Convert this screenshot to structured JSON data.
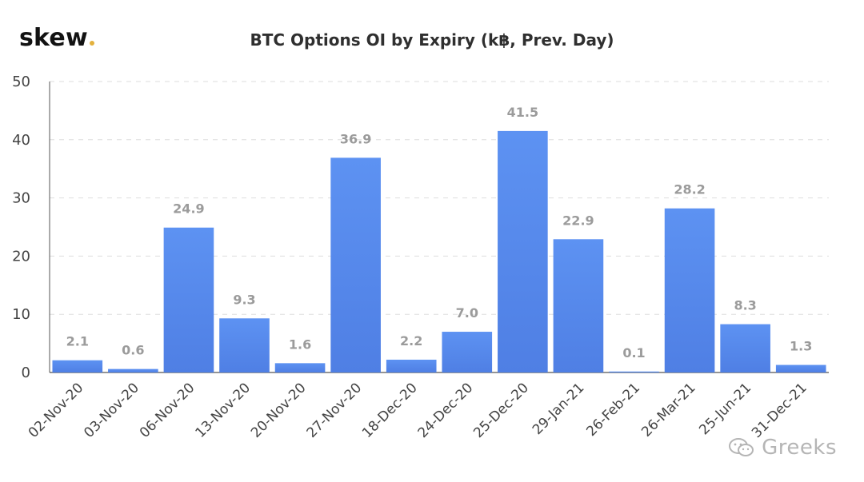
{
  "brand": {
    "logo_text": "skew",
    "logo_dot_color": "#e3b13d"
  },
  "watermark": {
    "text": "Greeks"
  },
  "colors": {
    "bar_top": "#5d92f2",
    "bar_bottom": "#4f7fe4",
    "grid": "#dddddd",
    "axis_text": "#444444",
    "value_text": "#9b9b9b",
    "title_text": "#2f2f2f"
  },
  "chart_data": {
    "type": "bar",
    "title": "BTC Options OI by Expiry (k฿, Prev. Day)",
    "xlabel": "",
    "ylabel": "",
    "categories": [
      "02-Nov-20",
      "03-Nov-20",
      "06-Nov-20",
      "13-Nov-20",
      "20-Nov-20",
      "27-Nov-20",
      "18-Dec-20",
      "24-Dec-20",
      "25-Dec-20",
      "29-Jan-21",
      "26-Feb-21",
      "26-Mar-21",
      "25-Jun-21",
      "31-Dec-21"
    ],
    "values": [
      2.1,
      0.6,
      24.9,
      9.3,
      1.6,
      36.9,
      2.2,
      7.0,
      41.5,
      22.9,
      0.1,
      28.2,
      8.3,
      1.3
    ],
    "value_labels": [
      "2.1",
      "0.6",
      "24.9",
      "9.3",
      "1.6",
      "36.9",
      "2.2",
      "7.0",
      "41.5",
      "22.9",
      "0.1",
      "28.2",
      "8.3",
      "1.3"
    ],
    "ylim": [
      0,
      50
    ],
    "yticks": [
      0,
      10,
      20,
      30,
      40,
      50
    ],
    "grid": true,
    "legend": "none"
  }
}
